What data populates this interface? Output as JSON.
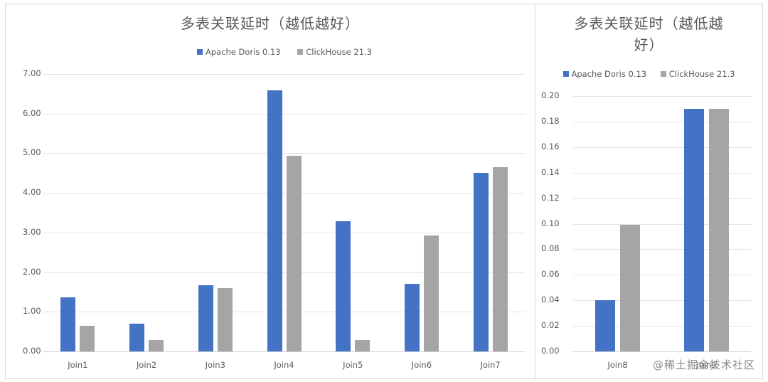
{
  "colors": {
    "doris": "#4472C4",
    "clickhouse": "#A5A5A5"
  },
  "watermark": "@稀土掘金技术社区",
  "chart_data": [
    {
      "type": "bar",
      "title": "多表关联延时（越低越好）",
      "legend": [
        "Apache Doris 0.13",
        "ClickHouse 21.3"
      ],
      "legend_position": "top",
      "categories": [
        "Join1",
        "Join2",
        "Join3",
        "Join4",
        "Join5",
        "Join6",
        "Join7"
      ],
      "series": [
        {
          "name": "Apache Doris 0.13",
          "color": "#4472C4",
          "values": [
            1.36,
            0.7,
            1.67,
            6.59,
            3.29,
            1.7,
            4.5
          ]
        },
        {
          "name": "ClickHouse 21.3",
          "color": "#A5A5A5",
          "values": [
            0.65,
            0.29,
            1.6,
            4.94,
            0.29,
            2.93,
            4.65
          ]
        }
      ],
      "xlabel": "",
      "ylabel": "",
      "ylim": [
        0,
        7
      ],
      "yticks": [
        "0.00",
        "1.00",
        "2.00",
        "3.00",
        "4.00",
        "5.00",
        "6.00",
        "7.00"
      ],
      "grid": true
    },
    {
      "type": "bar",
      "title": "多表关联延时（越低越好）",
      "title_lines": [
        "多表关联延时（越低越",
        "好）"
      ],
      "legend": [
        "Apache Doris 0.13",
        "ClickHouse 21.3"
      ],
      "legend_position": "top",
      "categories": [
        "Join8",
        "Join9"
      ],
      "series": [
        {
          "name": "Apache Doris 0.13",
          "color": "#4472C4",
          "values": [
            0.04,
            0.19
          ]
        },
        {
          "name": "ClickHouse 21.3",
          "color": "#A5A5A5",
          "values": [
            0.099,
            0.19
          ]
        }
      ],
      "xlabel": "",
      "ylabel": "",
      "ylim": [
        0,
        0.2
      ],
      "yticks": [
        "0.00",
        "0.02",
        "0.04",
        "0.06",
        "0.08",
        "0.10",
        "0.12",
        "0.14",
        "0.16",
        "0.18",
        "0.20"
      ],
      "grid": true
    }
  ]
}
